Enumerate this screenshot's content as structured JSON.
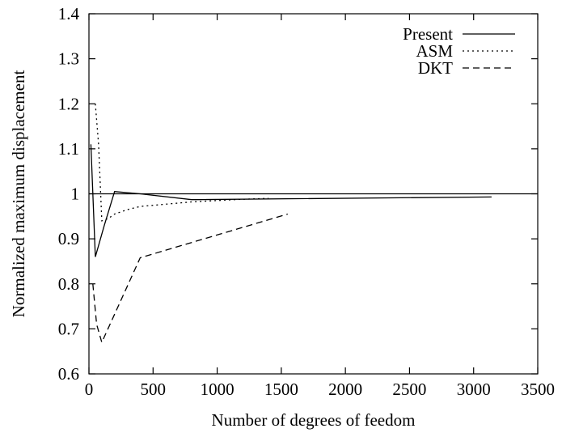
{
  "chart_data": {
    "type": "line",
    "title": "",
    "xlabel": "Number of degrees of feedom",
    "ylabel": "Normalized maximum displacement",
    "xlim": [
      0,
      3500
    ],
    "ylim": [
      0.6,
      1.4
    ],
    "x_ticks": [
      0,
      500,
      1000,
      1500,
      2000,
      2500,
      3000,
      3500
    ],
    "y_ticks": [
      0.6,
      0.7,
      0.8,
      0.9,
      1.0,
      1.1,
      1.2,
      1.3,
      1.4
    ],
    "x_tick_labels": [
      "0",
      "500",
      "1000",
      "1500",
      "2000",
      "2500",
      "3000",
      "3500"
    ],
    "y_tick_labels": [
      "0.6",
      "0.7",
      "0.8",
      "0.9",
      "1",
      "1.1",
      "1.2",
      "1.3",
      "1.4"
    ],
    "grid": false,
    "legend_position": "top-right",
    "reference_line": 1.0,
    "series": [
      {
        "name": "Present",
        "style": "solid",
        "x": [
          15,
          50,
          120,
          200,
          400,
          800,
          3140
        ],
        "y": [
          1.11,
          0.86,
          0.93,
          1.005,
          1.0,
          0.987,
          0.993
        ]
      },
      {
        "name": "ASM",
        "style": "dotted",
        "x": [
          50,
          75,
          100,
          150,
          200,
          300,
          400,
          600,
          800,
          1000,
          1200,
          1400
        ],
        "y": [
          1.2,
          1.11,
          0.94,
          0.945,
          0.955,
          0.965,
          0.972,
          0.977,
          0.982,
          0.985,
          0.988,
          0.99
        ]
      },
      {
        "name": "DKT",
        "style": "dashed",
        "x": [
          30,
          60,
          100,
          400,
          1550
        ],
        "y": [
          0.8,
          0.71,
          0.67,
          0.858,
          0.955
        ]
      }
    ]
  }
}
